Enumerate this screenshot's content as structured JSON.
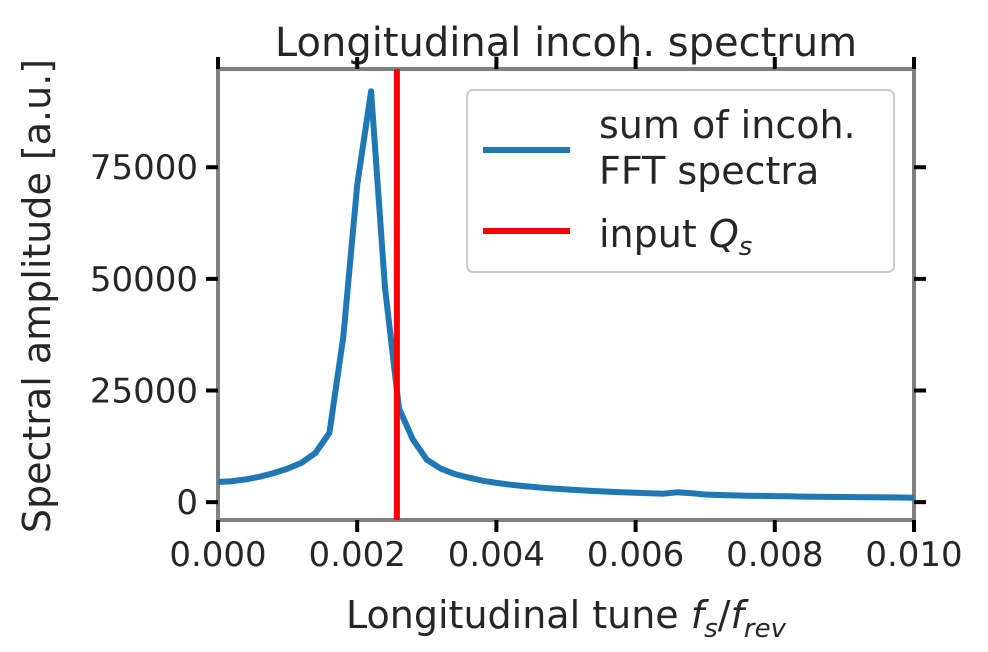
{
  "chart_data": {
    "type": "line",
    "title": "Longitudinal incoh. spectrum",
    "xlabel": {
      "main": "Longitudinal tune ",
      "f": "f",
      "s_sub": "s",
      "slash": "/",
      "rev_sub": "rev"
    },
    "ylabel": "Spectral amplitude [a.u.]",
    "xlim": [
      0.0,
      0.01
    ],
    "ylim": [
      -4000,
      97000
    ],
    "x_ticks": [
      0.0,
      0.002,
      0.004,
      0.006,
      0.008,
      0.01
    ],
    "x_tick_labels": [
      "0.000",
      "0.002",
      "0.004",
      "0.006",
      "0.008",
      "0.010"
    ],
    "y_ticks": [
      0,
      25000,
      50000,
      75000
    ],
    "y_tick_labels": [
      "0",
      "25000",
      "50000",
      "75000"
    ],
    "grid": false,
    "legend_position": "top-right",
    "series": [
      {
        "name": "sum of incoh. FFT spectra",
        "name_lines": [
          "sum of incoh.",
          "FFT spectra"
        ],
        "color": "#1f77b4",
        "x": [
          0.0,
          0.0002,
          0.0004,
          0.0006,
          0.0008,
          0.001,
          0.0012,
          0.0014,
          0.0016,
          0.0018,
          0.002,
          0.0022,
          0.0024,
          0.0026,
          0.0028,
          0.003,
          0.0032,
          0.0034,
          0.0036,
          0.0038,
          0.004,
          0.0042,
          0.0044,
          0.0046,
          0.0048,
          0.005,
          0.0052,
          0.0054,
          0.0056,
          0.0058,
          0.006,
          0.0062,
          0.0064,
          0.0066,
          0.0068,
          0.007,
          0.0072,
          0.0074,
          0.0076,
          0.0078,
          0.008,
          0.0082,
          0.0084,
          0.0086,
          0.0088,
          0.009,
          0.0092,
          0.0094,
          0.0096,
          0.0098,
          0.01
        ],
        "values": [
          4500,
          4700,
          5100,
          5700,
          6500,
          7500,
          8800,
          11000,
          15500,
          37000,
          71000,
          92000,
          48000,
          21000,
          14000,
          9500,
          7500,
          6300,
          5500,
          4800,
          4300,
          3900,
          3600,
          3300,
          3050,
          2850,
          2650,
          2500,
          2350,
          2200,
          2100,
          2000,
          1900,
          2200,
          2000,
          1700,
          1600,
          1500,
          1450,
          1400,
          1350,
          1300,
          1250,
          1200,
          1180,
          1150,
          1120,
          1100,
          1070,
          1040,
          1000
        ]
      },
      {
        "name": "input Q_s",
        "label_text": "input ",
        "label_math": "Q",
        "label_sub": "s",
        "color": "#ff0000",
        "x": [
          0.00257,
          0.00257
        ],
        "values": [
          -4000,
          97000
        ]
      }
    ]
  }
}
